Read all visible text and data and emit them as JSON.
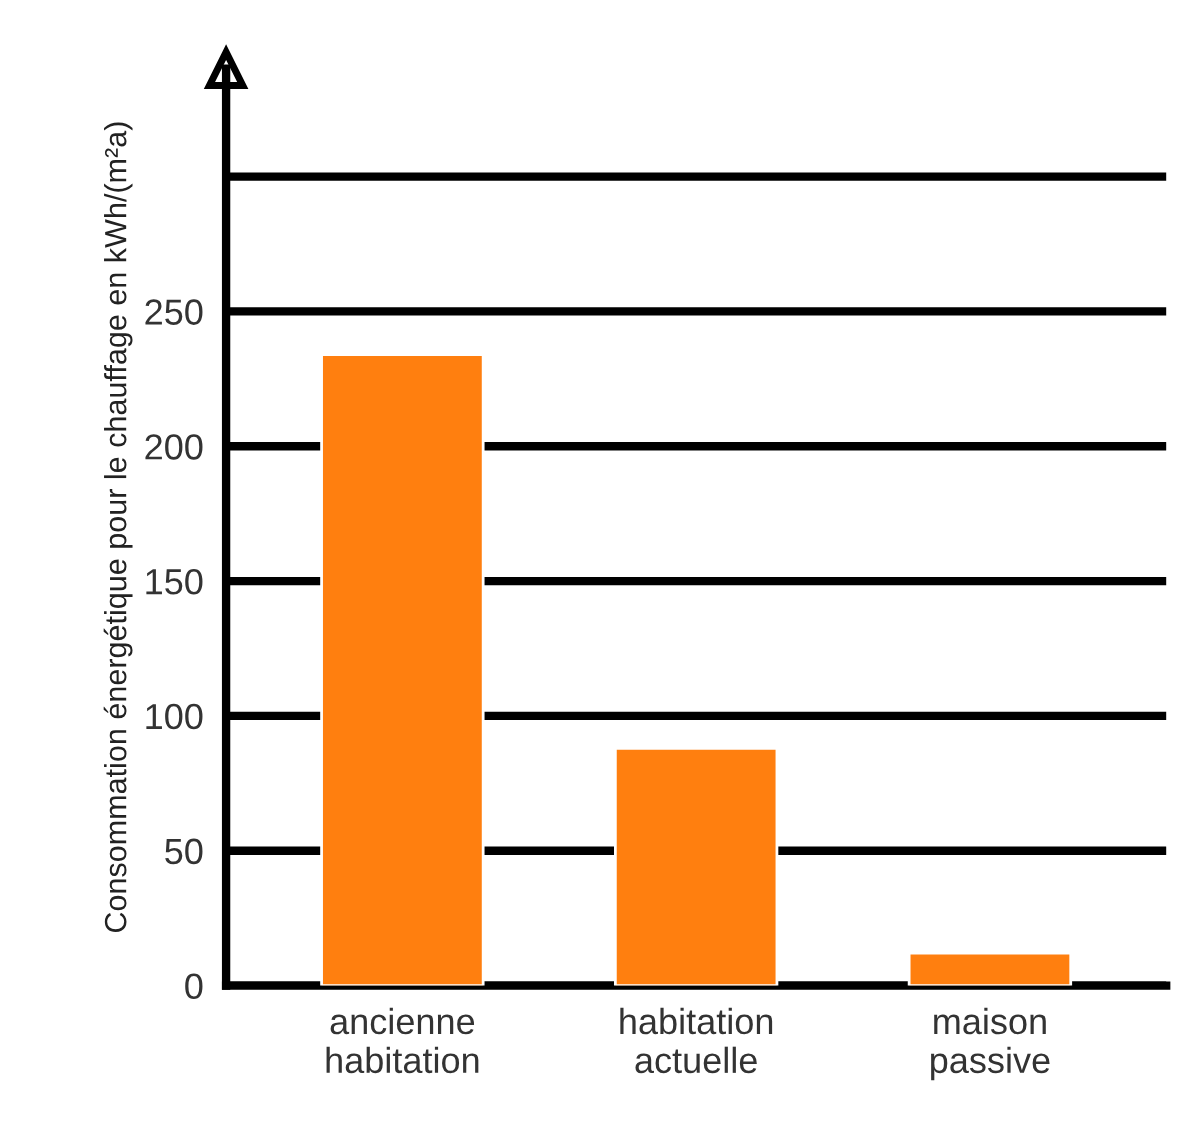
{
  "chart_data": {
    "type": "bar",
    "ylabel": "Consommation énergétique pour le chauffage en kWh/(m²a)",
    "categories": [
      "ancienne\nhabitation",
      "habitation\nactuelle",
      "maison\npassive"
    ],
    "values": [
      234,
      88,
      12
    ],
    "color": "#ff7f0f",
    "ylim": [
      0,
      340
    ],
    "yticks": [
      0,
      50,
      100,
      150,
      200,
      250,
      {
        "value": 300,
        "label": null
      }
    ],
    "grid": "y"
  }
}
